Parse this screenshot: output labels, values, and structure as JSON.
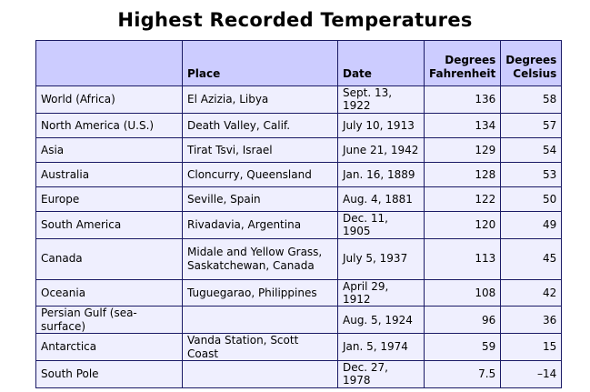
{
  "title": "Highest Recorded Temperatures",
  "headers": {
    "region": "",
    "place": "Place",
    "date": "Date",
    "fahrenheit": "Degrees Fahrenheit",
    "celsius": "Degrees Celsius"
  },
  "rows": [
    {
      "region": "World (Africa)",
      "place": "El Azizia, Libya",
      "date": "Sept. 13, 1922",
      "f": "136",
      "c": "58"
    },
    {
      "region": "North America (U.S.)",
      "place": "Death Valley, Calif.",
      "date": "July 10, 1913",
      "f": "134",
      "c": "57"
    },
    {
      "region": "Asia",
      "place": "Tirat Tsvi, Israel",
      "date": "June 21, 1942",
      "f": "129",
      "c": "54"
    },
    {
      "region": "Australia",
      "place": "Cloncurry, Queensland",
      "date": "Jan. 16, 1889",
      "f": "128",
      "c": "53"
    },
    {
      "region": "Europe",
      "place": "Seville, Spain",
      "date": "Aug. 4, 1881",
      "f": "122",
      "c": "50"
    },
    {
      "region": "South America",
      "place": "Rivadavia, Argentina",
      "date": "Dec. 11, 1905",
      "f": "120",
      "c": "49"
    },
    {
      "region": "Canada",
      "place": "Midale and Yellow Grass,\n Saskatchewan, Canada",
      "date": "July 5, 1937",
      "f": "113",
      "c": "45"
    },
    {
      "region": "Oceania",
      "place": "Tuguegarao, Philippines",
      "date": "April 29, 1912",
      "f": "108",
      "c": "42"
    },
    {
      "region": "Persian Gulf (sea-surface)",
      "place": "",
      "date": "Aug. 5, 1924",
      "f": "96",
      "c": "36"
    },
    {
      "region": "Antarctica",
      "place": "Vanda Station, Scott Coast",
      "date": "Jan. 5, 1974",
      "f": "59",
      "c": "15"
    },
    {
      "region": "South Pole",
      "place": "",
      "date": "Dec. 27, 1978",
      "f": "7.5",
      "c": "–14"
    }
  ],
  "colors": {
    "header_bg": "#ccccff",
    "cell_bg": "#efeffe",
    "border": "#1a1a66"
  }
}
